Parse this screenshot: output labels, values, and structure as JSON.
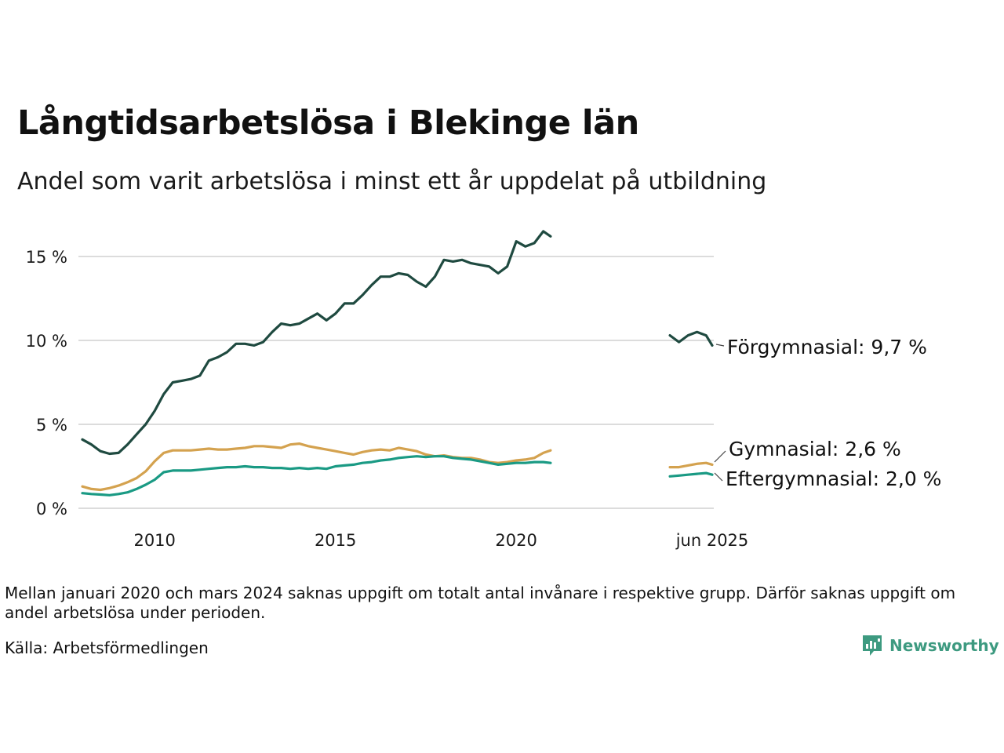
{
  "title": "Långtidsarbetslösa i Blekinge län",
  "subtitle": "Andel som varit arbetslösa i minst ett år uppdelat på utbildning",
  "footnote": "Mellan januari 2020 och mars 2024 saknas uppgift om totalt antal invånare i respektive grupp. Därför saknas uppgift om andel arbetslösa under perioden.",
  "source": "Källa: Arbetsförmedlingen",
  "brand": "Newsworthy",
  "colors": {
    "accent": "#3d9a80",
    "gridline": "#dcdcdc"
  },
  "chart_data": {
    "type": "line",
    "title": "Långtidsarbetslösa i Blekinge län",
    "xlabel": "",
    "ylabel": "",
    "ylim": [
      0,
      16.5
    ],
    "y_ticks": [
      0,
      5,
      10,
      15
    ],
    "y_tick_labels": [
      "0 %",
      "5 %",
      "10 %",
      "15 %"
    ],
    "x_ticks": [
      2010,
      2015,
      2020,
      2025.42
    ],
    "x_tick_labels": [
      "2010",
      "2015",
      "2020",
      "jun 2025"
    ],
    "grid": true,
    "legend": "direct labels at right end",
    "series": [
      {
        "name": "Förgymnasial",
        "end_label": "Förgymnasial: 9,7 %",
        "color": "#1f4a40",
        "segments": [
          [
            [
              2008.0,
              4.1
            ],
            [
              2008.25,
              3.8
            ],
            [
              2008.5,
              3.4
            ],
            [
              2008.75,
              3.25
            ],
            [
              2009.0,
              3.3
            ],
            [
              2009.25,
              3.8
            ],
            [
              2009.5,
              4.4
            ],
            [
              2009.75,
              5.0
            ],
            [
              2010.0,
              5.8
            ],
            [
              2010.25,
              6.8
            ],
            [
              2010.5,
              7.5
            ],
            [
              2010.75,
              7.6
            ],
            [
              2011.0,
              7.7
            ],
            [
              2011.25,
              7.9
            ],
            [
              2011.5,
              8.8
            ],
            [
              2011.75,
              9.0
            ],
            [
              2012.0,
              9.3
            ],
            [
              2012.25,
              9.8
            ],
            [
              2012.5,
              9.8
            ],
            [
              2012.75,
              9.7
            ],
            [
              2013.0,
              9.9
            ],
            [
              2013.25,
              10.5
            ],
            [
              2013.5,
              11.0
            ],
            [
              2013.75,
              10.9
            ],
            [
              2014.0,
              11.0
            ],
            [
              2014.25,
              11.3
            ],
            [
              2014.5,
              11.6
            ],
            [
              2014.75,
              11.2
            ],
            [
              2015.0,
              11.6
            ],
            [
              2015.25,
              12.2
            ],
            [
              2015.5,
              12.2
            ],
            [
              2015.75,
              12.7
            ],
            [
              2016.0,
              13.3
            ],
            [
              2016.25,
              13.8
            ],
            [
              2016.5,
              13.8
            ],
            [
              2016.75,
              14.0
            ],
            [
              2017.0,
              13.9
            ],
            [
              2017.25,
              13.5
            ],
            [
              2017.5,
              13.2
            ],
            [
              2017.75,
              13.8
            ],
            [
              2018.0,
              14.8
            ],
            [
              2018.25,
              14.7
            ],
            [
              2018.5,
              14.8
            ],
            [
              2018.75,
              14.6
            ],
            [
              2019.0,
              14.5
            ],
            [
              2019.25,
              14.4
            ],
            [
              2019.5,
              14.0
            ],
            [
              2019.75,
              14.4
            ],
            [
              2020.0,
              15.9
            ],
            [
              2020.25,
              15.6
            ],
            [
              2020.5,
              15.8
            ],
            [
              2020.75,
              16.5
            ],
            [
              2020.95,
              16.2
            ]
          ],
          [
            [
              2024.25,
              10.3
            ],
            [
              2024.5,
              9.9
            ],
            [
              2024.75,
              10.3
            ],
            [
              2025.0,
              10.5
            ],
            [
              2025.25,
              10.3
            ],
            [
              2025.42,
              9.7
            ]
          ]
        ]
      },
      {
        "name": "Gymnasial",
        "end_label": "Gymnasial: 2,6 %",
        "color": "#d4a24f",
        "segments": [
          [
            [
              2008.0,
              1.3
            ],
            [
              2008.25,
              1.15
            ],
            [
              2008.5,
              1.1
            ],
            [
              2008.75,
              1.2
            ],
            [
              2009.0,
              1.35
            ],
            [
              2009.25,
              1.55
            ],
            [
              2009.5,
              1.8
            ],
            [
              2009.75,
              2.2
            ],
            [
              2010.0,
              2.8
            ],
            [
              2010.25,
              3.3
            ],
            [
              2010.5,
              3.45
            ],
            [
              2010.75,
              3.45
            ],
            [
              2011.0,
              3.45
            ],
            [
              2011.25,
              3.5
            ],
            [
              2011.5,
              3.55
            ],
            [
              2011.75,
              3.5
            ],
            [
              2012.0,
              3.5
            ],
            [
              2012.25,
              3.55
            ],
            [
              2012.5,
              3.6
            ],
            [
              2012.75,
              3.7
            ],
            [
              2013.0,
              3.7
            ],
            [
              2013.25,
              3.65
            ],
            [
              2013.5,
              3.6
            ],
            [
              2013.75,
              3.8
            ],
            [
              2014.0,
              3.85
            ],
            [
              2014.25,
              3.7
            ],
            [
              2014.5,
              3.6
            ],
            [
              2014.75,
              3.5
            ],
            [
              2015.0,
              3.4
            ],
            [
              2015.25,
              3.3
            ],
            [
              2015.5,
              3.2
            ],
            [
              2015.75,
              3.35
            ],
            [
              2016.0,
              3.45
            ],
            [
              2016.25,
              3.5
            ],
            [
              2016.5,
              3.45
            ],
            [
              2016.75,
              3.6
            ],
            [
              2017.0,
              3.5
            ],
            [
              2017.25,
              3.4
            ],
            [
              2017.5,
              3.2
            ],
            [
              2017.75,
              3.1
            ],
            [
              2018.0,
              3.15
            ],
            [
              2018.25,
              3.05
            ],
            [
              2018.5,
              3.0
            ],
            [
              2018.75,
              3.0
            ],
            [
              2019.0,
              2.9
            ],
            [
              2019.25,
              2.75
            ],
            [
              2019.5,
              2.7
            ],
            [
              2019.75,
              2.75
            ],
            [
              2020.0,
              2.85
            ],
            [
              2020.25,
              2.9
            ],
            [
              2020.5,
              3.0
            ],
            [
              2020.75,
              3.3
            ],
            [
              2020.95,
              3.45
            ]
          ],
          [
            [
              2024.25,
              2.45
            ],
            [
              2024.5,
              2.45
            ],
            [
              2024.75,
              2.55
            ],
            [
              2025.0,
              2.65
            ],
            [
              2025.25,
              2.7
            ],
            [
              2025.42,
              2.6
            ]
          ]
        ]
      },
      {
        "name": "Eftergymnasial",
        "end_label": "Eftergymnasial: 2,0 %",
        "color": "#1a9a84",
        "segments": [
          [
            [
              2008.0,
              0.9
            ],
            [
              2008.25,
              0.85
            ],
            [
              2008.5,
              0.82
            ],
            [
              2008.75,
              0.78
            ],
            [
              2009.0,
              0.85
            ],
            [
              2009.25,
              0.95
            ],
            [
              2009.5,
              1.15
            ],
            [
              2009.75,
              1.4
            ],
            [
              2010.0,
              1.7
            ],
            [
              2010.25,
              2.15
            ],
            [
              2010.5,
              2.25
            ],
            [
              2010.75,
              2.25
            ],
            [
              2011.0,
              2.25
            ],
            [
              2011.25,
              2.3
            ],
            [
              2011.5,
              2.35
            ],
            [
              2011.75,
              2.4
            ],
            [
              2012.0,
              2.45
            ],
            [
              2012.25,
              2.45
            ],
            [
              2012.5,
              2.5
            ],
            [
              2012.75,
              2.45
            ],
            [
              2013.0,
              2.45
            ],
            [
              2013.25,
              2.4
            ],
            [
              2013.5,
              2.4
            ],
            [
              2013.75,
              2.35
            ],
            [
              2014.0,
              2.4
            ],
            [
              2014.25,
              2.35
            ],
            [
              2014.5,
              2.4
            ],
            [
              2014.75,
              2.35
            ],
            [
              2015.0,
              2.5
            ],
            [
              2015.25,
              2.55
            ],
            [
              2015.5,
              2.6
            ],
            [
              2015.75,
              2.7
            ],
            [
              2016.0,
              2.75
            ],
            [
              2016.25,
              2.85
            ],
            [
              2016.5,
              2.9
            ],
            [
              2016.75,
              3.0
            ],
            [
              2017.0,
              3.05
            ],
            [
              2017.25,
              3.1
            ],
            [
              2017.5,
              3.05
            ],
            [
              2017.75,
              3.1
            ],
            [
              2018.0,
              3.1
            ],
            [
              2018.25,
              3.0
            ],
            [
              2018.5,
              2.95
            ],
            [
              2018.75,
              2.9
            ],
            [
              2019.0,
              2.8
            ],
            [
              2019.25,
              2.7
            ],
            [
              2019.5,
              2.6
            ],
            [
              2019.75,
              2.65
            ],
            [
              2020.0,
              2.7
            ],
            [
              2020.25,
              2.7
            ],
            [
              2020.5,
              2.75
            ],
            [
              2020.75,
              2.75
            ],
            [
              2020.95,
              2.7
            ]
          ],
          [
            [
              2024.25,
              1.9
            ],
            [
              2024.5,
              1.95
            ],
            [
              2024.75,
              2.0
            ],
            [
              2025.0,
              2.05
            ],
            [
              2025.25,
              2.1
            ],
            [
              2025.42,
              2.0
            ]
          ]
        ]
      }
    ]
  }
}
